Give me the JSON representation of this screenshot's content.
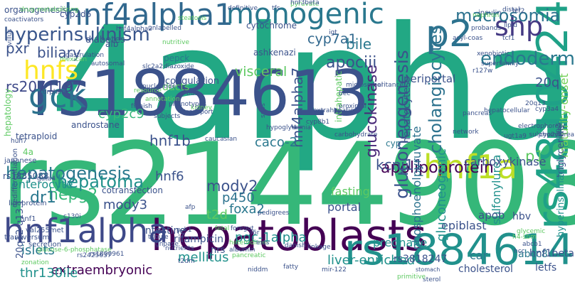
{
  "cloud": {
    "words": [
      {
        "text": "4alpha",
        "color": "#22a884"
      },
      {
        "text": "rs2144908",
        "color": "#35b779"
      },
      {
        "text": "rs1884613",
        "color": "#3b528b"
      },
      {
        "text": "hepatoblasts",
        "color": "#440154"
      },
      {
        "text": "hnf4alpha1",
        "color": "#31688e"
      },
      {
        "text": "monogenic",
        "color": "#2a788e"
      },
      {
        "text": "rs1884614",
        "color": "#21918c"
      },
      {
        "text": "rs4810424",
        "color": "#1fa187"
      },
      {
        "text": "hnf1a",
        "color": "#bddf26"
      },
      {
        "text": "hnf1alpha",
        "color": "#3e4989"
      },
      {
        "text": "p2",
        "color": "#2c728e"
      },
      {
        "text": "shp",
        "color": "#443983"
      },
      {
        "text": "gck",
        "color": "#2c728e"
      },
      {
        "text": "hnfs",
        "color": "#fde725"
      },
      {
        "text": "hyperinsulinism",
        "color": "#39568c"
      },
      {
        "text": "hepatogenesis",
        "color": "#2a788e"
      },
      {
        "text": "hepatoma",
        "color": "#21918c"
      },
      {
        "text": "apolipoprotein",
        "color": "#440154"
      },
      {
        "text": "gluconeogenesis",
        "color": "#3b528b"
      },
      {
        "text": "cholangiocytes",
        "color": "#2c728e"
      },
      {
        "text": "endoderm",
        "color": "#2a788e"
      },
      {
        "text": "macrosomia",
        "color": "#2c728e"
      },
      {
        "text": "maturity-onset",
        "color": "#73d056"
      },
      {
        "text": "apociii",
        "color": "#3b528b"
      },
      {
        "text": "cyp7a1",
        "color": "#31688e"
      },
      {
        "text": "biliary",
        "color": "#3b528b"
      },
      {
        "text": "rs2071197",
        "color": "#3e4989"
      },
      {
        "text": "pxr",
        "color": "#3b528b"
      },
      {
        "text": "hnf4alpha7",
        "color": "#3b528b"
      },
      {
        "text": "glucokinase",
        "color": "#482878"
      },
      {
        "text": "hnf1b",
        "color": "#3b528b"
      },
      {
        "text": "cyp2c9",
        "color": "#35b779"
      },
      {
        "text": "visceral",
        "color": "#5ec962"
      },
      {
        "text": "bile",
        "color": "#2a788e"
      },
      {
        "text": "20q",
        "color": "#3b528b"
      },
      {
        "text": "p1",
        "color": "#5ec962"
      },
      {
        "text": "kcnj11",
        "color": "#3b528b"
      },
      {
        "text": "hepg2",
        "color": "#35b779"
      },
      {
        "text": "dr1",
        "color": "#2a788e"
      },
      {
        "text": "mody2",
        "color": "#3b528b"
      },
      {
        "text": "mody3",
        "color": "#3b528b"
      },
      {
        "text": "caco-2",
        "color": "#2a788e"
      },
      {
        "text": "hnf6",
        "color": "#3b528b"
      },
      {
        "text": "enterocyte",
        "color": "#21918c"
      },
      {
        "text": "p450",
        "color": "#2c728e"
      },
      {
        "text": "t2d",
        "color": "#5ec962"
      },
      {
        "text": "foxa2",
        "color": "#2a788e"
      },
      {
        "text": "pgc-1alpha",
        "color": "#21918c"
      },
      {
        "text": "mellitus",
        "color": "#21918c"
      },
      {
        "text": "liver-enriched",
        "color": "#21918c"
      },
      {
        "text": "rs3818247",
        "color": "#3b528b"
      },
      {
        "text": "extraembryonic",
        "color": "#440154"
      },
      {
        "text": "thr130ile",
        "color": "#21918c"
      },
      {
        "text": "islets",
        "color": "#2a788e"
      },
      {
        "text": "hepatocytes",
        "color": "#3b528b"
      },
      {
        "text": "pregnane",
        "color": "#21918c"
      },
      {
        "text": "fasting",
        "color": "#5ec962"
      },
      {
        "text": "portal",
        "color": "#3b528b"
      },
      {
        "text": "phosphoenolpyruvate",
        "color": "#2c728e"
      },
      {
        "text": "sulfonylurea",
        "color": "#21918c"
      },
      {
        "text": "carboxykinase",
        "color": "#3b528b"
      },
      {
        "text": "gluconeogenic",
        "color": "#21918c"
      },
      {
        "text": "epiblast",
        "color": "#3b528b"
      },
      {
        "text": "car",
        "color": "#2a788e"
      },
      {
        "text": "apob",
        "color": "#3b528b"
      },
      {
        "text": "hbv",
        "color": "#3b528b"
      },
      {
        "text": "abcc8",
        "color": "#2a788e"
      },
      {
        "text": "letfs",
        "color": "#3b528b"
      },
      {
        "text": "hnf1beta",
        "color": "#3b528b"
      },
      {
        "text": "cholesterol",
        "color": "#3b528b"
      },
      {
        "text": "triglyceride",
        "color": "#3b528b"
      },
      {
        "text": "hyperinsulinaemic",
        "color": "#21918c"
      },
      {
        "text": "20q12-q13.1",
        "color": "#3b528b"
      },
      {
        "text": "intestine",
        "color": "#3b528b"
      },
      {
        "text": "rifampicin",
        "color": "#3b528b"
      },
      {
        "text": "nrs",
        "color": "#3b528b"
      },
      {
        "text": "ducts",
        "color": "#5ec962"
      },
      {
        "text": "diabetes",
        "color": "#3b528b"
      },
      {
        "text": "pepck",
        "color": "#2a788e"
      },
      {
        "text": "coagulation",
        "color": "#3b528b"
      },
      {
        "text": "cytochrome",
        "color": "#3b528b"
      },
      {
        "text": "ashkenazi",
        "color": "#3b528b"
      },
      {
        "text": "intrahepatic",
        "color": "#5ec962"
      },
      {
        "text": "periportal",
        "color": "#3b528b"
      },
      {
        "text": "cyp",
        "color": "#2a788e"
      },
      {
        "text": "tetraploid",
        "color": "#3b528b"
      },
      {
        "text": "rs1885088",
        "color": "#3b528b"
      },
      {
        "text": "cyp2d6",
        "color": "#3b528b"
      },
      {
        "text": "hepatology",
        "color": "#5ec962"
      },
      {
        "text": "androstane",
        "color": "#3b528b"
      },
      {
        "text": "4a",
        "color": "#5ec962"
      },
      {
        "text": "cotransfection",
        "color": "#3b528b"
      },
      {
        "text": "organogenesis",
        "color": "#3b528b"
      },
      {
        "text": "alb",
        "color": "#3b528b"
      },
      {
        "text": "dedifferentiation",
        "color": "#3b528b"
      },
      {
        "text": "japanese",
        "color": "#3b528b"
      },
      {
        "text": "lipoprotein",
        "color": "#3b528b"
      },
      {
        "text": "hnf1",
        "color": "#3b528b"
      },
      {
        "text": "secretion",
        "color": "#3b528b"
      },
      {
        "text": "val255met",
        "color": "#3b528b"
      },
      {
        "text": "transversum",
        "color": "#3b528b"
      },
      {
        "text": "glucose-6-phosphatase",
        "color": "#5ec962"
      },
      {
        "text": "rs2425637",
        "color": "#3b528b"
      },
      {
        "text": "zonation",
        "color": "#5ec962"
      },
      {
        "text": "albumin",
        "color": "#3b528b"
      },
      {
        "text": "nutrients",
        "color": "#3b528b"
      },
      {
        "text": "stomach",
        "color": "#3b528b"
      },
      {
        "text": "sulphonylurea",
        "color": "#3b528b"
      },
      {
        "text": "electrophoretic",
        "color": "#3b528b"
      },
      {
        "text": "hepatocellular",
        "color": "#3b528b"
      },
      {
        "text": "pancreas",
        "color": "#3b528b"
      },
      {
        "text": "insulin",
        "color": "#3b528b"
      },
      {
        "text": "probands",
        "color": "#3b528b"
      },
      {
        "text": "nephron",
        "color": "#5ec962"
      },
      {
        "text": "igt",
        "color": "#3b528b"
      },
      {
        "text": "acyl-coas",
        "color": "#3b528b"
      },
      {
        "text": "xenobiotic",
        "color": "#3b528b"
      },
      {
        "text": "superfamily",
        "color": "#3b528b"
      },
      {
        "text": "network",
        "color": "#3b528b"
      },
      {
        "text": "proximal",
        "color": "#3b528b"
      },
      {
        "text": "microsomal",
        "color": "#3b528b"
      },
      {
        "text": "inheritance",
        "color": "#3b528b"
      },
      {
        "text": "danish",
        "color": "#3b528b"
      },
      {
        "text": "linkage",
        "color": "#3b528b"
      },
      {
        "text": "extrahepatic",
        "color": "#3b528b"
      },
      {
        "text": "carbohydrate",
        "color": "#3b528b"
      },
      {
        "text": "pedigrees",
        "color": "#3b528b"
      },
      {
        "text": "hypoglycemia",
        "color": "#3b528b"
      },
      {
        "text": "caucasian",
        "color": "#3b528b"
      },
      {
        "text": "kidney",
        "color": "#5ec962"
      },
      {
        "text": "transport",
        "color": "#3b528b"
      },
      {
        "text": "subjects",
        "color": "#3b528b"
      },
      {
        "text": "finnish",
        "color": "#3b528b"
      },
      {
        "text": "annotation",
        "color": "#5ec962"
      },
      {
        "text": "nucleotide",
        "color": "#3b528b"
      },
      {
        "text": "bud",
        "color": "#3b528b"
      },
      {
        "text": "resource",
        "color": "#5ec962"
      },
      {
        "text": "nutritive",
        "color": "#5ec962"
      },
      {
        "text": "diazoxide",
        "color": "#3b528b"
      },
      {
        "text": "unlabelled",
        "color": "#3b528b"
      },
      {
        "text": "steatosis",
        "color": "#5ec962"
      },
      {
        "text": "definitive",
        "color": "#3b528b"
      },
      {
        "text": "tfs",
        "color": "#3b528b"
      },
      {
        "text": "pyruvate",
        "color": "#5ec962"
      },
      {
        "text": "hnf3beta",
        "color": "#3b528b"
      },
      {
        "text": "coactivators",
        "color": "#3b528b"
      },
      {
        "text": "drug-metabolizing",
        "color": "#5ec962"
      },
      {
        "text": "mexican",
        "color": "#5ec962"
      },
      {
        "text": "autosomal",
        "color": "#3b528b"
      },
      {
        "text": "gastrulation",
        "color": "#3b528b"
      },
      {
        "text": "villus",
        "color": "#3b528b"
      },
      {
        "text": "orphan",
        "color": "#3b528b"
      },
      {
        "text": "foregut",
        "color": "#3b528b"
      },
      {
        "text": "heterodimer",
        "color": "#5ec962"
      },
      {
        "text": "pancreatic",
        "color": "#5ec962"
      },
      {
        "text": "niddm",
        "color": "#3b528b"
      },
      {
        "text": "mir-122",
        "color": "#3b528b"
      },
      {
        "text": "sterol",
        "color": "#3b528b"
      },
      {
        "text": "hcc",
        "color": "#3b528b"
      },
      {
        "text": "h4-sbm",
        "color": "#5ec962"
      },
      {
        "text": "abcb1",
        "color": "#3b528b"
      },
      {
        "text": "glycemic",
        "color": "#5ec962"
      },
      {
        "text": "primitive",
        "color": "#5ec962"
      },
      {
        "text": "tcf2",
        "color": "#3b528b"
      },
      {
        "text": "distal",
        "color": "#3b528b"
      },
      {
        "text": "tcf1",
        "color": "#3b528b"
      },
      {
        "text": "lipid",
        "color": "#3b528b"
      },
      {
        "text": "r127w",
        "color": "#3b528b"
      },
      {
        "text": "cyp3a4",
        "color": "#3b528b"
      },
      {
        "text": "cyp2c8",
        "color": "#3b528b"
      },
      {
        "text": "e9.5",
        "color": "#3b528b"
      },
      {
        "text": "ugt1a9",
        "color": "#3b528b"
      },
      {
        "text": "cyp8b1",
        "color": "#3b528b"
      },
      {
        "text": "bec",
        "color": "#3b528b"
      },
      {
        "text": "ests",
        "color": "#3b528b"
      },
      {
        "text": "t2dm",
        "color": "#3b528b"
      },
      {
        "text": "pck1",
        "color": "#3b528b"
      },
      {
        "text": "il6r",
        "color": "#3b528b"
      },
      {
        "text": "gnpase",
        "color": "#3b528b"
      },
      {
        "text": "fatty",
        "color": "#3b528b"
      },
      {
        "text": "snps",
        "color": "#3b528b"
      },
      {
        "text": "fetal",
        "color": "#5ec962"
      },
      {
        "text": "tubule",
        "color": "#3b528b"
      },
      {
        "text": "afp",
        "color": "#3b528b"
      },
      {
        "text": "20q13",
        "color": "#3b528b"
      },
      {
        "text": "huh7",
        "color": "#3b528b"
      },
      {
        "text": "gata4",
        "color": "#3b528b"
      },
      {
        "text": "c130i",
        "color": "#3b528b"
      },
      {
        "text": "rs1800961",
        "color": "#3b528b"
      },
      {
        "text": "hnf4alpha2",
        "color": "#3b528b"
      },
      {
        "text": "slc2a2",
        "color": "#3b528b"
      },
      {
        "text": "phenotypes",
        "color": "#3b528b"
      }
    ]
  }
}
